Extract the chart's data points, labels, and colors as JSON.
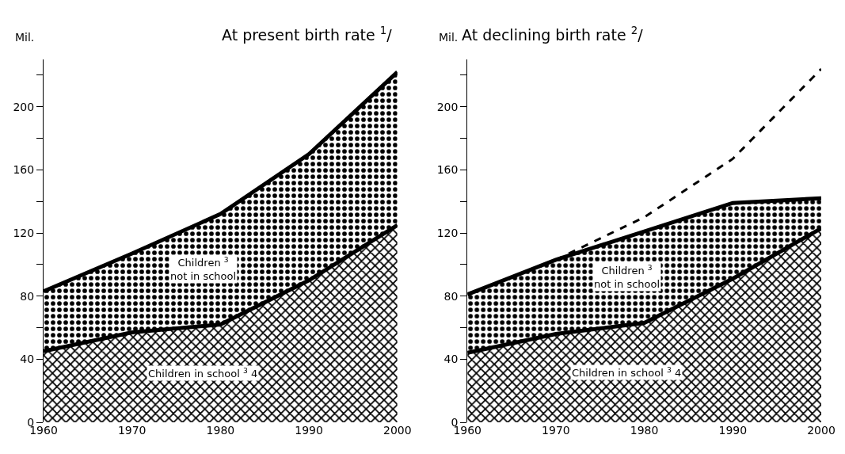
{
  "chart_data": [
    {
      "type": "area",
      "title": "At present birth rate $^{1}$/",
      "ylabel": "Mil.",
      "stacked": true,
      "x": [
        1960,
        1970,
        1980,
        1990,
        2000
      ],
      "series": [
        {
          "name": "Children in school $^{3}$ 4",
          "color": "#000000",
          "values": [
            45,
            57,
            62,
            90,
            125
          ]
        },
        {
          "name": "Children $^{3}$\nnot in school",
          "color": "#000000",
          "values": [
            38,
            50,
            70,
            80,
            97
          ]
        }
      ],
      "xlim": [
        1960,
        2000
      ],
      "xticks": [
        1960,
        1970,
        1980,
        1990,
        2000
      ],
      "ylim": [
        0,
        230
      ],
      "yticks": [
        0,
        40,
        80,
        120,
        160,
        200,
        {
          "value": 60,
          "label": null
        },
        {
          "value": 100,
          "label": null
        },
        {
          "value": 140,
          "label": null
        },
        {
          "value": 180,
          "label": null
        },
        {
          "value": 220,
          "label": null
        }
      ],
      "line_style": "solid"
    },
    {
      "type": "area",
      "title": "At declining birth rate $^{2}$/",
      "ylabel": "Mil.",
      "stacked": true,
      "x": [
        1960,
        1970,
        1980,
        1990,
        2000
      ],
      "series": [
        {
          "name": "Children in school $^{3}$ 4",
          "color": "#000000",
          "values": [
            44,
            56,
            63,
            91,
            123
          ]
        },
        {
          "name": "Children $^{3}$\nnot in school",
          "color": "#000000",
          "values": [
            37,
            47,
            58,
            48,
            19
          ]
        },
        {
          "type": "line",
          "color": "#000000",
          "line_style": "dashed",
          "x": [
            1970,
            1980,
            1990,
            2000
          ],
          "values": [
            103,
            130,
            167,
            224
          ]
        }
      ],
      "xlim": [
        1960,
        2000
      ],
      "xticks": [
        1960,
        1970,
        1980,
        1990,
        2000
      ],
      "ylim": [
        0,
        230
      ],
      "yticks": [
        0,
        40,
        80,
        120,
        160,
        200,
        {
          "value": 60,
          "label": null
        },
        {
          "value": 100,
          "label": null
        },
        {
          "value": 140,
          "label": null
        },
        {
          "value": 180,
          "label": null
        },
        {
          "value": 220,
          "label": null
        }
      ],
      "line_style": "solid"
    }
  ]
}
